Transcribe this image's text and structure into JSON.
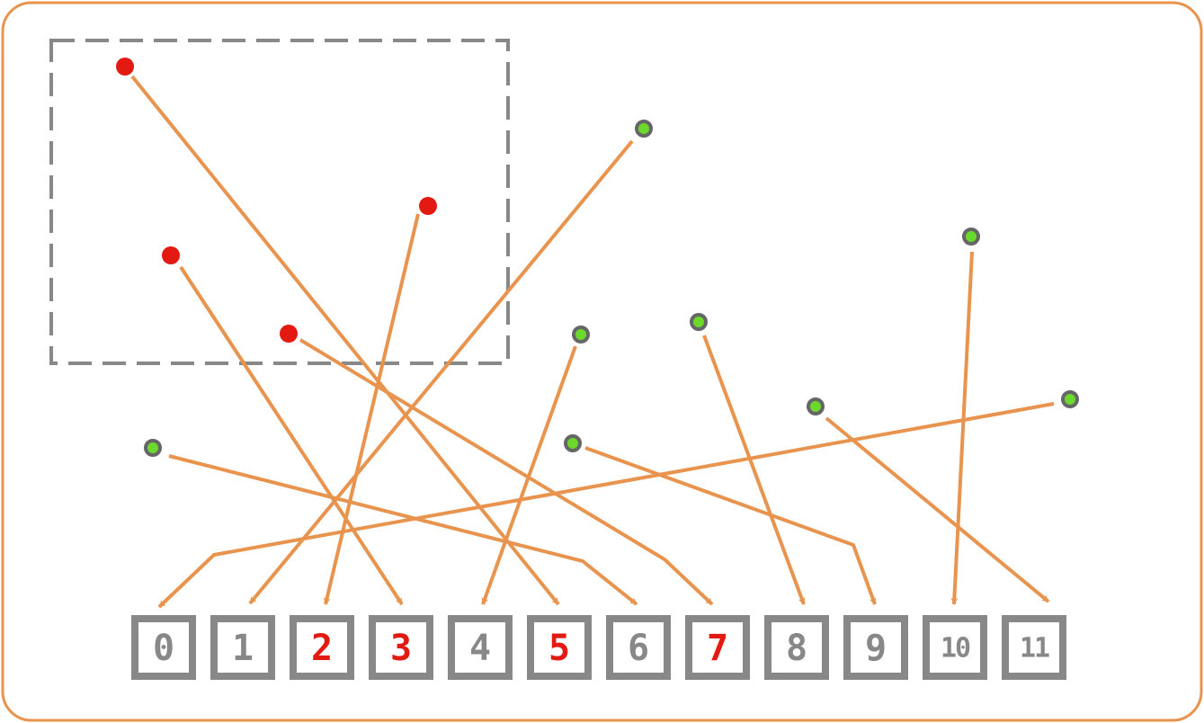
{
  "colors": {
    "frame": "#e8944f",
    "arrow": "#e8944f",
    "selection_border": "#888888",
    "box_border": "#888888",
    "box_text_default": "#888888",
    "box_text_selected": "#e31a12",
    "point_selected": "#e31a12",
    "point_default": "#6ad92b",
    "point_default_outline": "#666666"
  },
  "boxes": [
    {
      "label": "0",
      "selected": false
    },
    {
      "label": "1",
      "selected": false
    },
    {
      "label": "2",
      "selected": true
    },
    {
      "label": "3",
      "selected": true
    },
    {
      "label": "4",
      "selected": false
    },
    {
      "label": "5",
      "selected": true
    },
    {
      "label": "6",
      "selected": false
    },
    {
      "label": "7",
      "selected": true
    },
    {
      "label": "8",
      "selected": false
    },
    {
      "label": "9",
      "selected": false
    },
    {
      "label": "10",
      "selected": false
    },
    {
      "label": "11",
      "selected": false
    }
  ],
  "points": [
    {
      "target": 0,
      "selected": false
    },
    {
      "target": 1,
      "selected": false
    },
    {
      "target": 2,
      "selected": true
    },
    {
      "target": 3,
      "selected": true
    },
    {
      "target": 4,
      "selected": false
    },
    {
      "target": 5,
      "selected": true
    },
    {
      "target": 6,
      "selected": false
    },
    {
      "target": 7,
      "selected": true
    },
    {
      "target": 8,
      "selected": false
    },
    {
      "target": 9,
      "selected": false
    },
    {
      "target": 10,
      "selected": false
    },
    {
      "target": 11,
      "selected": false
    }
  ]
}
